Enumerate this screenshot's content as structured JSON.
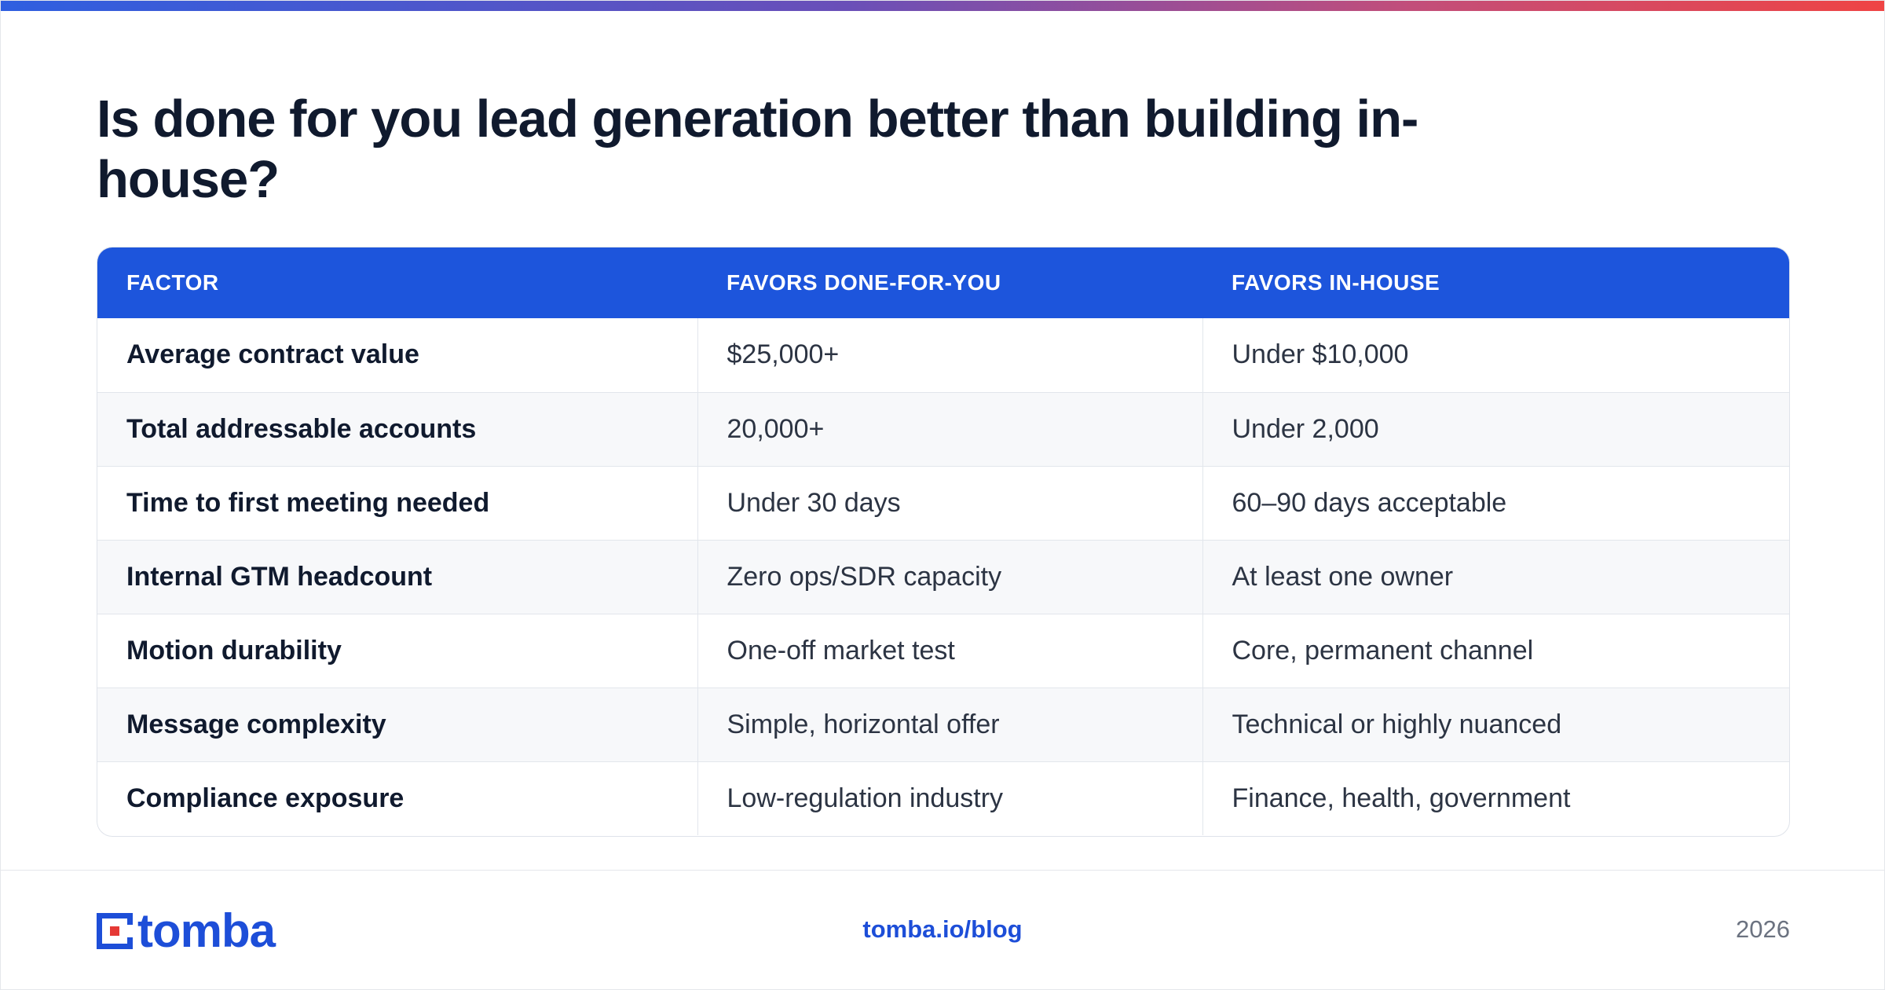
{
  "title": "Is done for you lead generation better than building in-house?",
  "table": {
    "headers": [
      "FACTOR",
      "FAVORS DONE-FOR-YOU",
      "FAVORS IN-HOUSE"
    ],
    "rows": [
      [
        "Average contract value",
        "$25,000+",
        "Under $10,000"
      ],
      [
        "Total addressable accounts",
        "20,000+",
        "Under 2,000"
      ],
      [
        "Time to first meeting needed",
        "Under 30 days",
        "60–90 days acceptable"
      ],
      [
        "Internal GTM headcount",
        "Zero ops/SDR capacity",
        "At least one owner"
      ],
      [
        "Motion durability",
        "One-off market test",
        "Core, permanent channel"
      ],
      [
        "Message complexity",
        "Simple, horizontal offer",
        "Technical or highly nuanced"
      ],
      [
        "Compliance exposure",
        "Low-regulation industry",
        "Finance, health, government"
      ]
    ]
  },
  "footer": {
    "logo_text": "tomba",
    "link": "tomba.io/blog",
    "year": "2026"
  },
  "colors": {
    "accent": "#1d55dc",
    "logo_red": "#e53935",
    "gradient_start": "#2f5fe0",
    "gradient_end": "#ef4444"
  }
}
